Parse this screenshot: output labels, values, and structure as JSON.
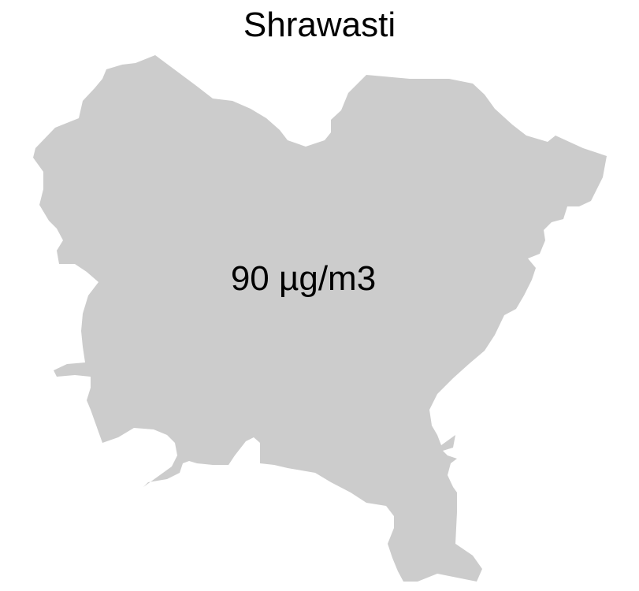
{
  "map": {
    "title": "Shrawasti",
    "value_label": "90 µg/m3",
    "fill_color": "#cccccc",
    "background_color": "#ffffff"
  }
}
